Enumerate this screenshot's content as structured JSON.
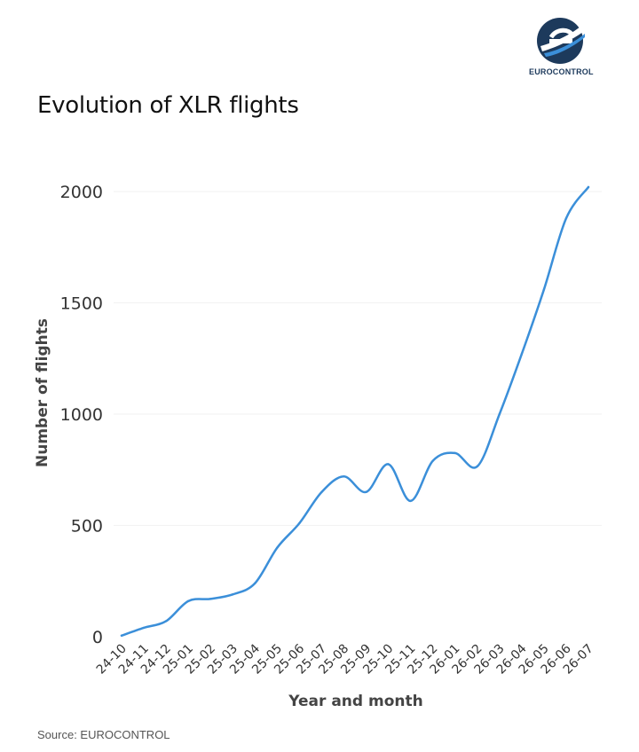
{
  "logo": {
    "text": "EUROCONTROL"
  },
  "title": "Evolution of XLR flights",
  "source": "Source: EUROCONTROL",
  "colors": {
    "line": "#3b8fd9",
    "grid": "#f2f2f2",
    "tick": "#333333",
    "brand": "#1d3a5c"
  },
  "chart_data": {
    "type": "line",
    "title": "Evolution of XLR flights",
    "xlabel": "Year and month",
    "ylabel": "Number of flights",
    "ylim": [
      0,
      2000
    ],
    "yticks": [
      0,
      500,
      1000,
      1500,
      2000
    ],
    "grid": true,
    "categories": [
      "24-10",
      "24-11",
      "24-12",
      "25-01",
      "25-02",
      "25-03",
      "25-04",
      "25-05",
      "25-06",
      "25-07",
      "25-08",
      "25-09",
      "25-10",
      "25-11",
      "25-12",
      "26-01",
      "26-02",
      "26-03",
      "26-04",
      "26-05",
      "26-06",
      "26-07"
    ],
    "series": [
      {
        "name": "",
        "values": [
          5,
          40,
          70,
          160,
          170,
          190,
          240,
          400,
          510,
          650,
          720,
          650,
          775,
          610,
          790,
          825,
          765,
          1000,
          1270,
          1560,
          1880,
          2020
        ]
      }
    ]
  }
}
